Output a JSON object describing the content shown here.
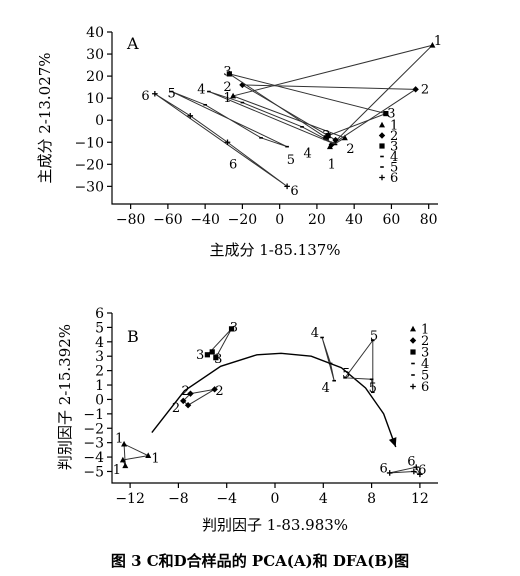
{
  "caption": "图 3  C和D合样品的 PCA(A)和 DFA(B)图",
  "chart_data": [
    {
      "type": "scatter",
      "panel": "A",
      "xlabel": "主成分 1-85.137%",
      "ylabel": "主成分 2-13.027%",
      "xlim": [
        -90,
        85
      ],
      "ylim": [
        -38,
        40
      ],
      "xticks": [
        -80,
        -60,
        -40,
        -20,
        0,
        20,
        40,
        60,
        80
      ],
      "yticks": [
        -30,
        -20,
        -10,
        0,
        10,
        20,
        30,
        40
      ],
      "legend": {
        "position": "right",
        "entries": [
          "1",
          "2",
          "3",
          "4",
          "5",
          "6"
        ]
      },
      "series": [
        {
          "name": "1",
          "marker": "triangle",
          "points": [
            [
              82,
              34
            ],
            [
              -25,
              11
            ],
            [
              35,
              -8
            ],
            [
              27,
              -12
            ]
          ]
        },
        {
          "name": "2",
          "marker": "diamond",
          "points": [
            [
              73,
              14
            ],
            [
              -20,
              16
            ],
            [
              30,
              -9
            ],
            [
              28,
              -11
            ]
          ]
        },
        {
          "name": "3",
          "marker": "square",
          "points": [
            [
              57,
              3
            ],
            [
              -27,
              21
            ],
            [
              25,
              -8
            ],
            [
              26,
              -7
            ]
          ]
        },
        {
          "name": "4",
          "marker": "dash",
          "points": [
            [
              -38,
              13
            ],
            [
              -20,
              8
            ],
            [
              12,
              -3
            ],
            [
              30,
              -11
            ]
          ]
        },
        {
          "name": "5",
          "marker": "dash",
          "points": [
            [
              -58,
              13
            ],
            [
              -40,
              7
            ],
            [
              -10,
              -8
            ],
            [
              4,
              -12
            ]
          ]
        },
        {
          "name": "6",
          "marker": "plus",
          "points": [
            [
              -67,
              12
            ],
            [
              -48,
              2
            ],
            [
              -28,
              -10
            ],
            [
              4,
              -30
            ]
          ]
        }
      ],
      "labels": [
        {
          "text": "1",
          "x": 85,
          "y": 36
        },
        {
          "text": "2",
          "x": 78,
          "y": 14
        },
        {
          "text": "3",
          "x": 60,
          "y": 3
        },
        {
          "text": "1",
          "x": 28,
          "y": -20
        },
        {
          "text": "2",
          "x": 38,
          "y": -13
        },
        {
          "text": "3",
          "x": 25,
          "y": -7
        },
        {
          "text": "4",
          "x": 15,
          "y": -15
        },
        {
          "text": "5",
          "x": 6,
          "y": -18
        },
        {
          "text": "6",
          "x": -25,
          "y": -20
        },
        {
          "text": "6",
          "x": 8,
          "y": -32
        },
        {
          "text": "6",
          "x": -72,
          "y": 11
        },
        {
          "text": "5",
          "x": -58,
          "y": 12
        },
        {
          "text": "4",
          "x": -42,
          "y": 14
        },
        {
          "text": "3",
          "x": -28,
          "y": 22
        },
        {
          "text": "2",
          "x": -28,
          "y": 15
        },
        {
          "text": "1",
          "x": -28,
          "y": 10
        }
      ]
    },
    {
      "type": "scatter",
      "panel": "B",
      "xlabel": "判别因子 1-83.983%",
      "ylabel": "判别因子 2-15.392%",
      "xlim": [
        -13.5,
        13.5
      ],
      "ylim": [
        -5.8,
        6
      ],
      "xticks": [
        -12,
        -8,
        -4,
        0,
        4,
        8,
        12
      ],
      "yticks": [
        -5,
        -4,
        -3,
        -2,
        -1,
        0,
        1,
        2,
        3,
        4,
        5,
        6
      ],
      "legend": {
        "position": "right",
        "entries": [
          "1",
          "2",
          "3",
          "4",
          "5",
          "6"
        ]
      },
      "arc": {
        "points": [
          [
            -10.2,
            -2.3
          ],
          [
            -7.5,
            0.6
          ],
          [
            -4.5,
            2.3
          ],
          [
            -1.5,
            3.1
          ],
          [
            0.5,
            3.2
          ],
          [
            3,
            3
          ],
          [
            5.5,
            2.2
          ],
          [
            7.5,
            0.8
          ],
          [
            9,
            -1
          ],
          [
            10,
            -3.3
          ]
        ],
        "arrow_at_end": true
      },
      "series": [
        {
          "name": "1",
          "marker": "triangle",
          "points": [
            [
              -12.5,
              -3.1
            ],
            [
              -10.5,
              -3.9
            ],
            [
              -12.6,
              -4.2
            ],
            [
              -12.4,
              -4.6
            ]
          ]
        },
        {
          "name": "2",
          "marker": "diamond",
          "points": [
            [
              -7,
              0.4
            ],
            [
              -5,
              0.7
            ],
            [
              -7.2,
              -0.4
            ],
            [
              -7.6,
              -0.1
            ]
          ]
        },
        {
          "name": "3",
          "marker": "square",
          "points": [
            [
              -3.6,
              4.9
            ],
            [
              -5.6,
              3.1
            ],
            [
              -5.2,
              3.3
            ],
            [
              -4.9,
              2.9
            ]
          ]
        },
        {
          "name": "4",
          "marker": "dash",
          "points": [
            [
              3.9,
              4.3
            ],
            [
              4.6,
              2.5
            ],
            [
              4.9,
              1.3
            ]
          ]
        },
        {
          "name": "5",
          "marker": "dash",
          "points": [
            [
              8.1,
              4.1
            ],
            [
              5.8,
              1.5
            ],
            [
              8,
              1.4
            ],
            [
              8.1,
              0.5
            ]
          ]
        },
        {
          "name": "6",
          "marker": "plus",
          "points": [
            [
              9.5,
              -5.1
            ],
            [
              11.5,
              -5
            ],
            [
              12,
              -5.2
            ],
            [
              11.7,
              -4.7
            ]
          ]
        }
      ],
      "labels": [
        {
          "text": "1",
          "x": -12.9,
          "y": -2.7
        },
        {
          "text": "1",
          "x": -9.9,
          "y": -4.1
        },
        {
          "text": "1",
          "x": -13.1,
          "y": -4.9
        },
        {
          "text": "2",
          "x": -7.4,
          "y": 0.6
        },
        {
          "text": "2",
          "x": -4.6,
          "y": 0.6
        },
        {
          "text": "2",
          "x": -8.2,
          "y": -0.6
        },
        {
          "text": "3",
          "x": -3.4,
          "y": 5
        },
        {
          "text": "3",
          "x": -6.2,
          "y": 3.1
        },
        {
          "text": "3",
          "x": -4.7,
          "y": 2.8
        },
        {
          "text": "4",
          "x": 3.3,
          "y": 4.6
        },
        {
          "text": "4",
          "x": 4.2,
          "y": 0.8
        },
        {
          "text": "5",
          "x": 8.2,
          "y": 4.4
        },
        {
          "text": "5",
          "x": 5.9,
          "y": 1.8
        },
        {
          "text": "5",
          "x": 8.1,
          "y": 0.8
        },
        {
          "text": "6",
          "x": 9,
          "y": -4.8
        },
        {
          "text": "6",
          "x": 11.3,
          "y": -4.3
        },
        {
          "text": "6",
          "x": 12.2,
          "y": -4.9
        }
      ]
    }
  ]
}
